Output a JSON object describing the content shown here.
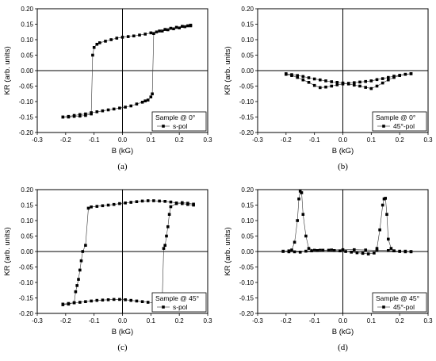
{
  "chart_data": [
    {
      "type": "scatter",
      "panel_label": "(a)",
      "xlabel": "B (kG)",
      "ylabel": "KR (arb. units)",
      "xlim": [
        -0.3,
        0.3
      ],
      "ylim": [
        -0.2,
        0.2
      ],
      "xticks": [
        "-0.3",
        "-0.2",
        "-0.1",
        "0.0",
        "0.1",
        "0.2",
        "0.3"
      ],
      "yticks": [
        "-0.20",
        "-0.15",
        "-0.10",
        "-0.05",
        "0.00",
        "0.05",
        "0.10",
        "0.15",
        "0.20"
      ],
      "legend": {
        "title": "Sample @ 0°",
        "entry": "s-pol",
        "position": "bottom-right"
      },
      "series": [
        {
          "name": "s-pol",
          "branches": [
            {
              "x": [
                0.24,
                0.22,
                0.2,
                0.18,
                0.16,
                0.14,
                0.12,
                0.1,
                0.08,
                0.06,
                0.04,
                0.02,
                0.0,
                -0.02,
                -0.04,
                -0.06,
                -0.08,
                -0.09,
                -0.1,
                -0.105,
                -0.11,
                -0.13,
                -0.15,
                -0.17,
                -0.19,
                -0.21
              ],
              "y": [
                0.145,
                0.142,
                0.138,
                0.135,
                0.132,
                0.128,
                0.125,
                0.122,
                0.118,
                0.115,
                0.112,
                0.11,
                0.108,
                0.105,
                0.1,
                0.095,
                0.09,
                0.085,
                0.075,
                0.05,
                -0.14,
                -0.145,
                -0.147,
                -0.148,
                -0.15,
                -0.15
              ]
            },
            {
              "x": [
                -0.21,
                -0.19,
                -0.17,
                -0.15,
                -0.13,
                -0.11,
                -0.09,
                -0.07,
                -0.05,
                -0.03,
                -0.01,
                0.01,
                0.03,
                0.05,
                0.07,
                0.08,
                0.09,
                0.1,
                0.105,
                0.11,
                0.13,
                0.15,
                0.17,
                0.19,
                0.21,
                0.23,
                0.24
              ],
              "y": [
                -0.15,
                -0.148,
                -0.145,
                -0.142,
                -0.14,
                -0.136,
                -0.133,
                -0.13,
                -0.127,
                -0.124,
                -0.121,
                -0.118,
                -0.114,
                -0.108,
                -0.102,
                -0.098,
                -0.095,
                -0.085,
                -0.075,
                0.12,
                0.128,
                0.133,
                0.137,
                0.14,
                0.143,
                0.145,
                0.147
              ]
            }
          ]
        }
      ]
    },
    {
      "type": "scatter",
      "panel_label": "(b)",
      "xlabel": "B (kG)",
      "ylabel": "KR (arb. units)",
      "xlim": [
        -0.3,
        0.3
      ],
      "ylim": [
        -0.2,
        0.2
      ],
      "xticks": [
        "-0.3",
        "-0.2",
        "-0.1",
        "0.0",
        "0.1",
        "0.2",
        "0.3"
      ],
      "yticks": [
        "-0.20",
        "-0.15",
        "-0.10",
        "-0.05",
        "0.00",
        "0.05",
        "0.10",
        "0.15",
        "0.20"
      ],
      "legend": {
        "title": "Sample @ 0°",
        "entry": "45°-pol",
        "position": "bottom-right"
      },
      "series": [
        {
          "name": "45°-pol",
          "branches": [
            {
              "x": [
                0.24,
                0.22,
                0.2,
                0.18,
                0.16,
                0.14,
                0.12,
                0.1,
                0.08,
                0.06,
                0.04,
                0.02,
                0.0,
                -0.02,
                -0.04,
                -0.06,
                -0.08,
                -0.1,
                -0.12,
                -0.14,
                -0.16,
                -0.18,
                -0.2
              ],
              "y": [
                -0.01,
                -0.012,
                -0.015,
                -0.018,
                -0.022,
                -0.026,
                -0.029,
                -0.033,
                -0.035,
                -0.037,
                -0.039,
                -0.041,
                -0.043,
                -0.046,
                -0.05,
                -0.053,
                -0.055,
                -0.048,
                -0.038,
                -0.03,
                -0.022,
                -0.016,
                -0.012
              ]
            },
            {
              "x": [
                -0.2,
                -0.18,
                -0.16,
                -0.14,
                -0.12,
                -0.1,
                -0.08,
                -0.06,
                -0.04,
                -0.02,
                0.0,
                0.02,
                0.04,
                0.06,
                0.08,
                0.1,
                0.12,
                0.14,
                0.16,
                0.18,
                0.2,
                0.22,
                0.24
              ],
              "y": [
                -0.01,
                -0.013,
                -0.016,
                -0.019,
                -0.023,
                -0.027,
                -0.03,
                -0.033,
                -0.036,
                -0.038,
                -0.04,
                -0.043,
                -0.047,
                -0.05,
                -0.054,
                -0.058,
                -0.05,
                -0.04,
                -0.03,
                -0.022,
                -0.016,
                -0.012,
                -0.01
              ]
            }
          ]
        }
      ]
    },
    {
      "type": "scatter",
      "panel_label": "(c)",
      "xlabel": "B (kG)",
      "ylabel": "KR (arb. units)",
      "xlim": [
        -0.3,
        0.3
      ],
      "ylim": [
        -0.2,
        0.2
      ],
      "xticks": [
        "-0.3",
        "-0.2",
        "-0.1",
        "0.0",
        "0.1",
        "0.2",
        "0.3"
      ],
      "yticks": [
        "-0.20",
        "-0.15",
        "-0.10",
        "-0.05",
        "0.00",
        "0.05",
        "0.10",
        "0.15",
        "0.20"
      ],
      "legend": {
        "title": "Sample @ 45°",
        "entry": "s-pol",
        "position": "bottom-right"
      },
      "series": [
        {
          "name": "s-pol",
          "branches": [
            {
              "x": [
                0.25,
                0.23,
                0.21,
                0.19,
                0.17,
                0.15,
                0.13,
                0.11,
                0.09,
                0.07,
                0.05,
                0.03,
                0.01,
                -0.01,
                -0.03,
                -0.05,
                -0.07,
                -0.09,
                -0.11,
                -0.12,
                -0.13,
                -0.14,
                -0.145,
                -0.15,
                -0.155,
                -0.16,
                -0.165,
                -0.17,
                -0.19,
                -0.21
              ],
              "y": [
                0.15,
                0.152,
                0.155,
                0.157,
                0.16,
                0.162,
                0.163,
                0.164,
                0.164,
                0.163,
                0.161,
                0.159,
                0.157,
                0.155,
                0.152,
                0.15,
                0.148,
                0.146,
                0.144,
                0.14,
                0.02,
                0.0,
                -0.03,
                -0.06,
                -0.09,
                -0.11,
                -0.13,
                -0.165,
                -0.17,
                -0.172
              ]
            },
            {
              "x": [
                -0.21,
                -0.19,
                -0.17,
                -0.15,
                -0.13,
                -0.11,
                -0.09,
                -0.07,
                -0.05,
                -0.03,
                -0.01,
                0.01,
                0.03,
                0.05,
                0.07,
                0.09,
                0.11,
                0.13,
                0.14,
                0.145,
                0.15,
                0.155,
                0.16,
                0.165,
                0.17,
                0.19,
                0.21,
                0.23,
                0.25
              ],
              "y": [
                -0.17,
                -0.168,
                -0.166,
                -0.164,
                -0.162,
                -0.16,
                -0.158,
                -0.157,
                -0.156,
                -0.155,
                -0.155,
                -0.156,
                -0.158,
                -0.16,
                -0.162,
                -0.164,
                -0.166,
                -0.168,
                -0.15,
                0.01,
                0.02,
                0.05,
                0.08,
                0.12,
                0.145,
                0.155,
                0.158,
                0.156,
                0.153
              ]
            }
          ]
        }
      ]
    },
    {
      "type": "scatter",
      "panel_label": "(d)",
      "xlabel": "B (kG)",
      "ylabel": "KR (arb. units)",
      "xlim": [
        -0.3,
        0.3
      ],
      "ylim": [
        -0.2,
        0.2
      ],
      "xticks": [
        "-0.3",
        "-0.2",
        "-0.1",
        "0.0",
        "0.1",
        "0.2",
        "0.3"
      ],
      "yticks": [
        "-0.20",
        "-0.15",
        "-0.10",
        "-0.05",
        "0.00",
        "0.05",
        "0.10",
        "0.15",
        "0.20"
      ],
      "legend": {
        "title": "Sample @ 45°",
        "entry": "45°-pol",
        "position": "bottom-right"
      },
      "series": [
        {
          "name": "45°-pol",
          "branches": [
            {
              "x": [
                0.24,
                0.22,
                0.2,
                0.18,
                0.16,
                0.12,
                0.08,
                0.04,
                0.0,
                -0.04,
                -0.08,
                -0.1,
                -0.12,
                -0.13,
                -0.14,
                -0.145,
                -0.15,
                -0.155,
                -0.16,
                -0.17,
                -0.18,
                -0.19,
                -0.21
              ],
              "y": [
                0.0,
                0.001,
                0.001,
                0.002,
                0.003,
                0.004,
                0.005,
                0.006,
                0.006,
                0.005,
                0.004,
                0.004,
                0.01,
                0.05,
                0.12,
                0.19,
                0.195,
                0.17,
                0.1,
                0.03,
                0.005,
                0.002,
                0.001
              ]
            },
            {
              "x": [
                -0.21,
                -0.19,
                -0.17,
                -0.15,
                -0.13,
                -0.11,
                -0.09,
                -0.07,
                -0.05,
                -0.03,
                -0.01,
                0.01,
                0.03,
                0.05,
                0.07,
                0.09,
                0.11,
                0.12,
                0.13,
                0.14,
                0.145,
                0.15,
                0.155,
                0.16,
                0.17,
                0.18,
                0.2,
                0.22,
                0.24
              ],
              "y": [
                0.0,
                -0.001,
                -0.001,
                -0.002,
                0.001,
                0.002,
                0.003,
                0.004,
                0.004,
                0.003,
                0.002,
                0.0,
                -0.002,
                -0.004,
                -0.006,
                -0.008,
                -0.005,
                0.01,
                0.07,
                0.15,
                0.17,
                0.172,
                0.12,
                0.04,
                0.01,
                0.002,
                0.0,
                -0.001,
                -0.001
              ]
            }
          ]
        }
      ]
    }
  ]
}
